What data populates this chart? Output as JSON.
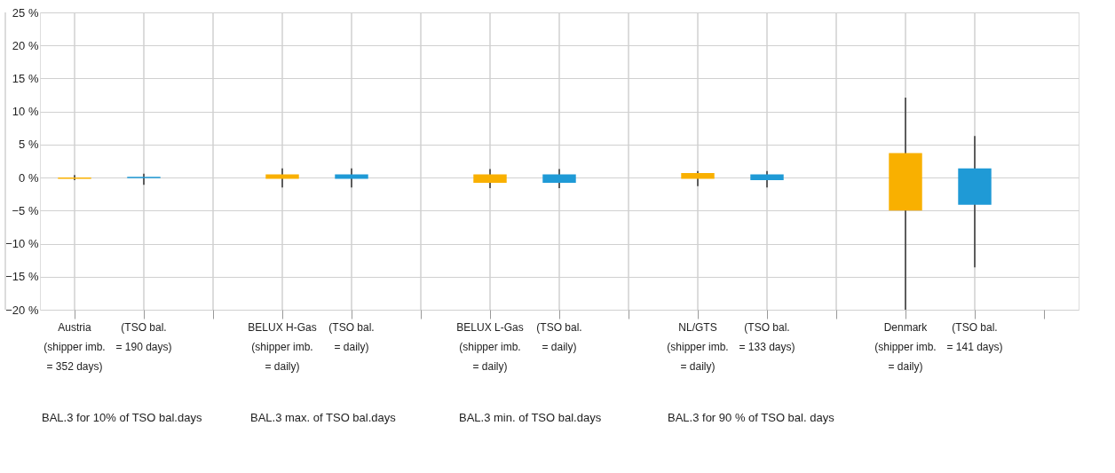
{
  "chart_data": {
    "type": "bar",
    "categories": [
      "Austria\n(shipper imb.\n= 352 days)",
      "(TSO bal.\n= 190 days)",
      null,
      "BELUX H-Gas\n(shipper imb.\n= daily)",
      "(TSO bal.\n= daily)",
      null,
      "BELUX L-Gas\n(shipper imb.\n= daily)",
      "(TSO bal.\n= daily)",
      null,
      "NL/GTS\n(shipper imb.\n= daily)",
      "(TSO bal.\n= 133 days)",
      null,
      "Denmark\n(shipper imb.\n= daily)",
      "(TSO bal.\n= 141 days)",
      null
    ],
    "base": [
      -0.2,
      -0.1,
      null,
      -0.2,
      -0.2,
      null,
      -0.8,
      -0.8,
      null,
      -0.2,
      -0.4,
      null,
      -5.0,
      -4.1,
      null
    ],
    "values": [
      0.2,
      0.2,
      null,
      0.7,
      0.7,
      null,
      1.3,
      1.3,
      null,
      0.9,
      0.9,
      null,
      8.7,
      5.5,
      null
    ],
    "errors": [
      [
        -0.4,
        0.4
      ],
      [
        -1.1,
        0.6
      ],
      null,
      [
        -1.5,
        1.4
      ],
      [
        -1.5,
        1.4
      ],
      null,
      [
        -1.6,
        1.3
      ],
      [
        -1.6,
        1.3
      ],
      null,
      [
        -1.3,
        1.0
      ],
      [
        -1.5,
        1.0
      ],
      null,
      [
        -20,
        12.1
      ],
      [
        -13.6,
        6.3
      ],
      null
    ],
    "colors": [
      "#f9b000",
      "#1f9ad6",
      null,
      "#f9b000",
      "#1f9ad6",
      null,
      "#f9b000",
      "#1f9ad6",
      null,
      "#f9b000",
      "#1f9ad6",
      null,
      "#f9b000",
      "#1f9ad6",
      null
    ],
    "ylim": [
      -20,
      25
    ],
    "yticks": [
      {
        "value": -20,
        "label": "−20 %"
      },
      {
        "value": -15,
        "label": "−15 %"
      },
      {
        "value": -10,
        "label": "−10 %"
      },
      {
        "value": -5,
        "label": "−5 %"
      },
      {
        "value": 0,
        "label": "0 %"
      },
      {
        "value": 5,
        "label": "5 %"
      },
      {
        "value": 10,
        "label": "10 %"
      },
      {
        "value": 15,
        "label": "15 %"
      },
      {
        "value": 20,
        "label": "20 %"
      },
      {
        "value": 25,
        "label": "25 %"
      }
    ],
    "grid": true,
    "annotations": [
      "BAL.3 for 10% of TSO bal.days",
      "BAL.3 max. of TSO bal.days",
      "BAL.3 min. of TSO bal.days",
      "BAL.3 for 90 % of TSO bal. days"
    ]
  }
}
